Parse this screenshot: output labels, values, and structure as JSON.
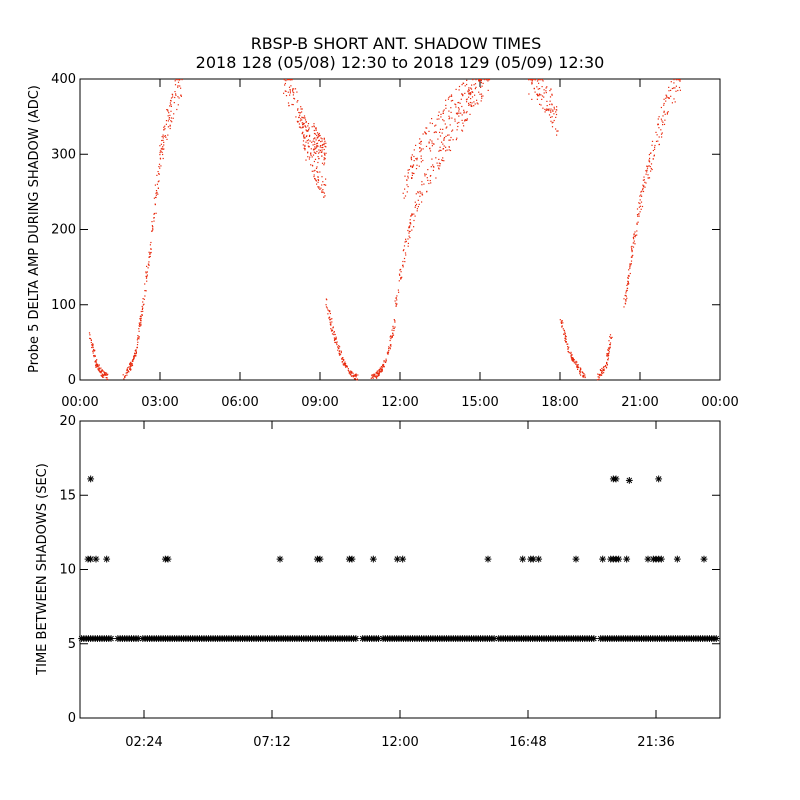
{
  "header": {
    "title_line1": "RBSP-B SHORT ANT. SHADOW TIMES",
    "title_line2": "2018 128 (05/08) 12:30 to 2018 129 (05/09) 12:30"
  },
  "colors": {
    "top_points": "#e8280c",
    "bottom_points": "#000000",
    "axes": "#000000"
  },
  "chart_data": [
    {
      "type": "scatter",
      "title": "RBSP-B SHORT ANT. SHADOW TIMES",
      "ylabel": "Probe 5 DELTA AMP DURING SHADOW (ADC)",
      "xlabel": "",
      "xlim": [
        0,
        24
      ],
      "ylim": [
        0,
        400
      ],
      "x_unit": "hours",
      "x_ticks": [
        0,
        3,
        6,
        9,
        12,
        15,
        18,
        21,
        24
      ],
      "x_tick_labels": [
        "00:00",
        "03:00",
        "06:00",
        "09:00",
        "12:00",
        "15:00",
        "18:00",
        "21:00",
        "00:00"
      ],
      "y_ticks": [
        0,
        100,
        200,
        300,
        400
      ],
      "y_tick_labels": [
        "0",
        "100",
        "200",
        "300",
        "400"
      ],
      "marker": "dot",
      "series_trend": [
        {
          "x": [
            0.35,
            0.6,
            0.8,
            1.0
          ],
          "y": [
            60,
            20,
            10,
            5
          ]
        },
        {
          "x": [
            1.6,
            1.9,
            2.1,
            2.3,
            2.6,
            2.9,
            3.1,
            3.4,
            3.8
          ],
          "y": [
            5,
            20,
            40,
            90,
            170,
            270,
            320,
            360,
            400
          ]
        },
        {
          "x": [
            7.6,
            8.0,
            8.4,
            8.8,
            9.2
          ],
          "y": [
            400,
            380,
            320,
            280,
            250
          ]
        },
        {
          "x": [
            8.2,
            8.5,
            8.8,
            9.0,
            9.2
          ],
          "y": [
            350,
            330,
            320,
            310,
            300
          ]
        },
        {
          "x": [
            9.2,
            9.5,
            9.8,
            10.1,
            10.4
          ],
          "y": [
            110,
            60,
            30,
            10,
            3
          ]
        },
        {
          "x": [
            10.9,
            11.2,
            11.5,
            11.8
          ],
          "y": [
            3,
            10,
            30,
            80
          ]
        },
        {
          "x": [
            11.8,
            12.2,
            12.6,
            13.2,
            13.8,
            14.4,
            15.0
          ],
          "y": [
            100,
            180,
            240,
            280,
            320,
            360,
            400
          ]
        },
        {
          "x": [
            12.1,
            12.5,
            13.0,
            13.6,
            14.2,
            14.8,
            15.4
          ],
          "y": [
            250,
            290,
            320,
            350,
            370,
            390,
            400
          ]
        },
        {
          "x": [
            16.8,
            17.2,
            17.6,
            17.9
          ],
          "y": [
            400,
            390,
            370,
            340
          ]
        },
        {
          "x": [
            18.0,
            18.3,
            18.6,
            18.9
          ],
          "y": [
            80,
            40,
            20,
            5
          ]
        },
        {
          "x": [
            19.4,
            19.7,
            19.9
          ],
          "y": [
            5,
            20,
            60
          ]
        },
        {
          "x": [
            20.4,
            20.6,
            20.9,
            21.2,
            21.6,
            22.0,
            22.5
          ],
          "y": [
            100,
            150,
            220,
            270,
            320,
            370,
            400
          ]
        }
      ]
    },
    {
      "type": "scatter",
      "ylabel": "TIME BETWEEN SHADOWS (SEC)",
      "xlabel": "",
      "xlim": [
        0,
        24
      ],
      "ylim": [
        0,
        20
      ],
      "x_unit": "hours",
      "x_ticks": [
        2.4,
        7.2,
        12.0,
        16.8,
        21.6
      ],
      "x_tick_labels": [
        "02:24",
        "07:12",
        "12:00",
        "16:48",
        "21:36"
      ],
      "y_ticks": [
        0,
        5,
        10,
        15,
        20
      ],
      "y_tick_labels": [
        "0",
        "5",
        "10",
        "15",
        "20"
      ],
      "marker": "asterisk",
      "baseline": {
        "y": 5.35,
        "x_start": 0.0,
        "x_end": 24.0,
        "gaps": [
          [
            1.2,
            1.4
          ],
          [
            2.2,
            2.3
          ],
          [
            10.4,
            10.6
          ],
          [
            11.2,
            11.3
          ],
          [
            15.6,
            15.7
          ],
          [
            19.3,
            19.5
          ]
        ]
      },
      "points": {
        "x": [
          0.3,
          0.4,
          0.6,
          1.0,
          3.2,
          3.3,
          7.5,
          8.9,
          9.0,
          10.1,
          10.2,
          11.0,
          11.9,
          12.1,
          15.3,
          16.6,
          16.9,
          17.0,
          17.2,
          18.6,
          19.6,
          19.9,
          20.0,
          20.1,
          20.2,
          20.5,
          21.3,
          21.5,
          21.6,
          21.7,
          21.8,
          22.4,
          23.4,
          0.4,
          20.0,
          20.1,
          20.6,
          21.7
        ],
        "y": [
          10.7,
          10.7,
          10.7,
          10.7,
          10.7,
          10.7,
          10.7,
          10.7,
          10.7,
          10.7,
          10.7,
          10.7,
          10.7,
          10.7,
          10.7,
          10.7,
          10.7,
          10.7,
          10.7,
          10.7,
          10.7,
          10.7,
          10.7,
          10.7,
          10.7,
          10.7,
          10.7,
          10.7,
          10.7,
          10.7,
          10.7,
          10.7,
          10.7,
          16.1,
          16.1,
          16.1,
          16.0,
          16.1
        ]
      }
    }
  ]
}
